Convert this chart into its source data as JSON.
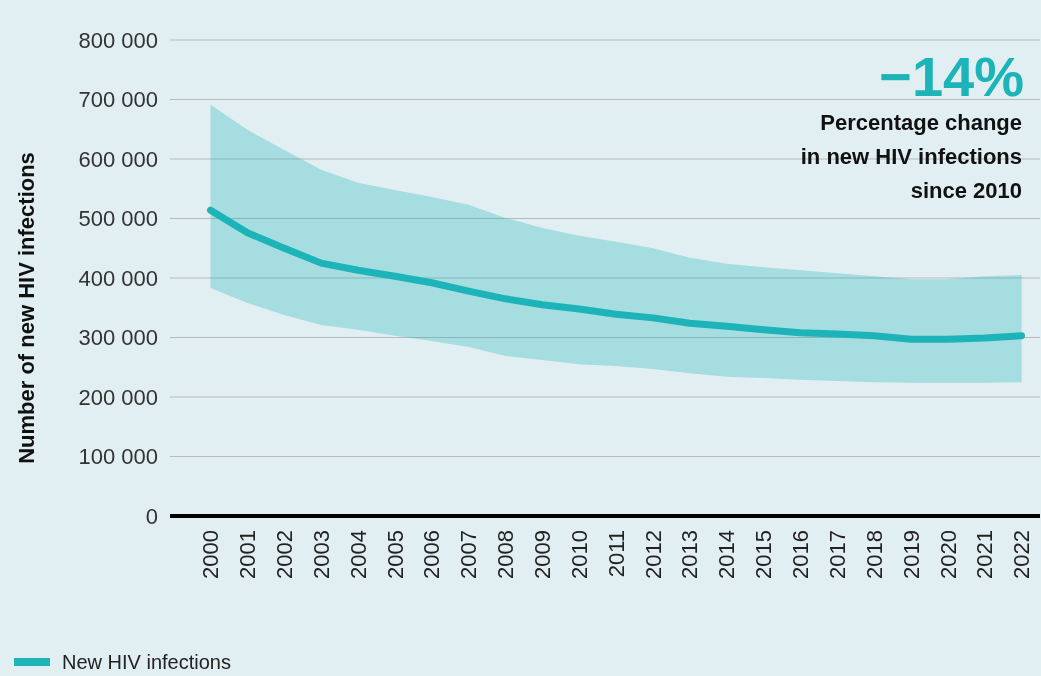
{
  "chart_data": {
    "type": "line",
    "ylabel": "Number of new HIV infections",
    "x": [
      2000,
      2001,
      2002,
      2003,
      2004,
      2005,
      2006,
      2007,
      2008,
      2009,
      2010,
      2011,
      2012,
      2013,
      2014,
      2015,
      2016,
      2017,
      2018,
      2019,
      2020,
      2021,
      2022
    ],
    "series": [
      {
        "name": "New HIV infections",
        "color": "#1cb4b8",
        "values": [
          514000,
          476000,
          450000,
          425000,
          413000,
          403000,
          392000,
          378000,
          365000,
          355000,
          348000,
          339000,
          333000,
          324000,
          319000,
          313000,
          308000,
          306000,
          303000,
          297000,
          297000,
          299000,
          303000
        ],
        "lower": [
          383000,
          358000,
          338000,
          321000,
          313000,
          303000,
          294000,
          284000,
          269000,
          262000,
          255000,
          252000,
          247000,
          240000,
          234000,
          232000,
          229000,
          227000,
          225000,
          224000,
          224000,
          224000,
          225000
        ],
        "upper": [
          691000,
          649000,
          615000,
          582000,
          560000,
          548000,
          536000,
          523000,
          501000,
          484000,
          471000,
          461000,
          450000,
          434000,
          424000,
          418000,
          413000,
          408000,
          403000,
          398000,
          398000,
          403000,
          405000
        ]
      }
    ],
    "xlim": [
      1998.9,
      2022.5
    ],
    "xticks": [
      2000,
      2001,
      2002,
      2003,
      2004,
      2005,
      2006,
      2007,
      2008,
      2009,
      2010,
      2011,
      2012,
      2013,
      2014,
      2015,
      2016,
      2017,
      2018,
      2019,
      2020,
      2021,
      2022
    ],
    "ylim": [
      0,
      800000
    ],
    "yticks": [
      {
        "value": 0,
        "label": "0"
      },
      {
        "value": 100000,
        "label": "100 000"
      },
      {
        "value": 200000,
        "label": "200 000"
      },
      {
        "value": 300000,
        "label": "300 000"
      },
      {
        "value": 400000,
        "label": "400 000"
      },
      {
        "value": 500000,
        "label": "500 000"
      },
      {
        "value": 600000,
        "label": "600 000"
      },
      {
        "value": 700000,
        "label": "700 000"
      },
      {
        "value": 800000,
        "label": "800 000"
      }
    ],
    "grid": "y",
    "legend": "bottom left",
    "line_style": "solid",
    "marker": "none",
    "annotations": [
      "−14%",
      "Percentage change\nin new HIV infections\nsince 2010"
    ]
  }
}
